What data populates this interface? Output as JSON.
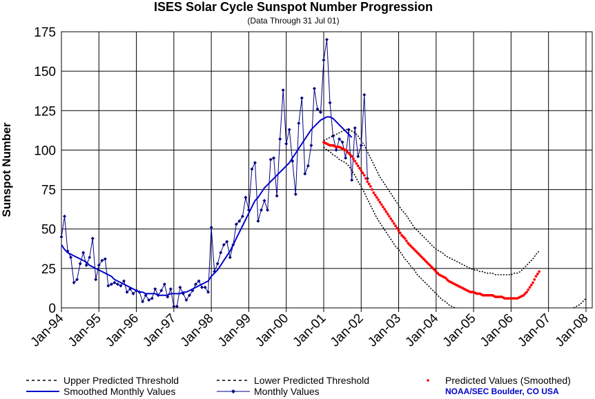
{
  "chart_data": {
    "type": "line",
    "title": "ISES Solar Cycle Sunspot Number Progression",
    "subtitle": "(Data Through 31 Jul 01)",
    "ylabel": "Sunspot Number",
    "xlabel": "",
    "ylim": [
      0,
      175
    ],
    "yticks": [
      "0",
      "25",
      "50",
      "75",
      "100",
      "125",
      "150",
      "175"
    ],
    "xlim": [
      0,
      170
    ],
    "xticks": [
      {
        "label": "Jan-94",
        "month": 0
      },
      {
        "label": "Jan-95",
        "month": 12
      },
      {
        "label": "Jan-96",
        "month": 24
      },
      {
        "label": "Jan-97",
        "month": 36
      },
      {
        "label": "Jan-98",
        "month": 48
      },
      {
        "label": "Jan-99",
        "month": 60
      },
      {
        "label": "Jan-00",
        "month": 72
      },
      {
        "label": "Jan-01",
        "month": 84
      },
      {
        "label": "Jan-02",
        "month": 96
      },
      {
        "label": "Jan-03",
        "month": 108
      },
      {
        "label": "Jan-04",
        "month": 120
      },
      {
        "label": "Jan-05",
        "month": 132
      },
      {
        "label": "Jan-06",
        "month": 144
      },
      {
        "label": "Jan-07",
        "month": 156
      },
      {
        "label": "Jan-08",
        "month": 168
      }
    ],
    "grid": true,
    "legend_position": "bottom",
    "x_unit": "months since Jan-94",
    "series": [
      {
        "name": "Monthly Values",
        "color": "#000080",
        "marker": "diamond",
        "start_month": 0,
        "values": [
          45,
          58,
          36,
          32,
          16,
          18,
          28,
          35,
          27,
          32,
          44,
          18,
          27,
          30,
          31,
          14,
          15,
          16,
          15,
          14,
          17,
          10,
          12,
          9,
          11,
          10,
          4,
          8,
          5,
          6,
          12,
          8,
          11,
          15,
          7,
          12,
          1,
          1,
          13,
          9,
          5,
          8,
          11,
          15,
          17,
          13,
          13,
          10,
          51,
          23,
          28,
          35,
          40,
          42,
          32,
          40,
          53,
          55,
          58,
          70,
          62,
          88,
          92,
          55,
          62,
          68,
          62,
          94,
          95,
          71,
          107,
          138,
          104,
          113,
          93,
          72,
          117,
          133,
          85,
          90,
          103,
          139,
          126,
          124,
          157,
          170,
          130,
          109,
          100,
          107,
          105,
          95,
          113,
          81,
          114,
          96,
          103,
          135,
          82
        ],
        "start_month_note": "Jan-94"
      },
      {
        "name": "Smoothed Monthly Values",
        "color": "#0000cc",
        "start_month": 0,
        "values": [
          40,
          37,
          35,
          34,
          33,
          32,
          31,
          30,
          29,
          27,
          26,
          25,
          24,
          23,
          22,
          21,
          20,
          18,
          17,
          16,
          15,
          14,
          13,
          12,
          11,
          10,
          10,
          9,
          9,
          9,
          9,
          8,
          8,
          8,
          8,
          9,
          9,
          9,
          9,
          10,
          10,
          11,
          12,
          13,
          14,
          15,
          16,
          17,
          20,
          22,
          24,
          27,
          30,
          33,
          36,
          40,
          44,
          48,
          52,
          56,
          60,
          64,
          68,
          70,
          73,
          76,
          78,
          80,
          82,
          84,
          86,
          88,
          90,
          92,
          95,
          98,
          101,
          104,
          107,
          110,
          113,
          115,
          117,
          119,
          120,
          121,
          121,
          120,
          118,
          116,
          114,
          112,
          110,
          108
        ]
      },
      {
        "name": "Predicted Values (Smoothed)",
        "color": "#ff0000",
        "marker": "dot",
        "start_month": 84,
        "values": [
          105,
          104,
          103,
          103,
          102,
          102,
          101,
          100,
          98,
          96,
          93,
          90,
          87,
          84,
          80,
          77,
          73,
          70,
          67,
          64,
          61,
          58,
          55,
          52,
          49,
          46,
          44,
          41,
          39,
          37,
          35,
          33,
          31,
          29,
          27,
          25,
          23,
          21,
          20,
          19,
          17,
          16,
          15,
          14,
          13,
          12,
          11,
          10,
          10,
          9,
          9,
          8,
          8,
          8,
          8,
          7,
          7,
          7,
          6,
          6,
          6,
          6,
          6,
          7,
          8,
          10,
          13,
          16,
          20,
          23
        ]
      },
      {
        "name": "Upper Predicted Threshold",
        "color": "#000000",
        "dash": "dashed",
        "start_month": 84,
        "values": [
          106,
          107,
          108,
          109,
          110,
          111,
          112,
          113,
          113,
          112,
          111,
          109,
          106,
          103,
          99,
          95,
          91,
          87,
          83,
          80,
          77,
          74,
          71,
          68,
          65,
          62,
          60,
          57,
          54,
          51,
          49,
          47,
          45,
          43,
          41,
          39,
          37,
          36,
          35,
          33,
          32,
          31,
          30,
          29,
          28,
          27,
          26,
          25,
          24,
          24,
          23,
          23,
          22,
          22,
          22,
          21,
          21,
          21,
          21,
          21,
          21,
          22,
          22,
          23,
          25,
          27,
          29,
          31,
          34,
          36
        ]
      },
      {
        "name": "Lower Predicted Threshold",
        "color": "#000000",
        "dash": "dashed",
        "start_month": 84,
        "values": [
          102,
          100,
          99,
          97,
          96,
          94,
          93,
          92,
          90,
          87,
          84,
          80,
          77,
          73,
          69,
          65,
          61,
          57,
          54,
          51,
          48,
          45,
          42,
          39,
          37,
          34,
          31,
          29,
          26,
          24,
          21,
          19,
          17,
          15,
          13,
          11,
          9,
          7,
          5,
          4,
          2,
          1,
          0
        ],
        "tail_start_month": 164,
        "tail_values": [
          0,
          1,
          2,
          4,
          6
        ]
      }
    ],
    "legend_entries": [
      "Upper Predicted Threshold",
      "Lower Predicted Threshold",
      "Predicted Values (Smoothed)",
      "Smoothed Monthly Values",
      "Monthly Values"
    ]
  },
  "credit": "NOAA/SEC Boulder, CO USA"
}
